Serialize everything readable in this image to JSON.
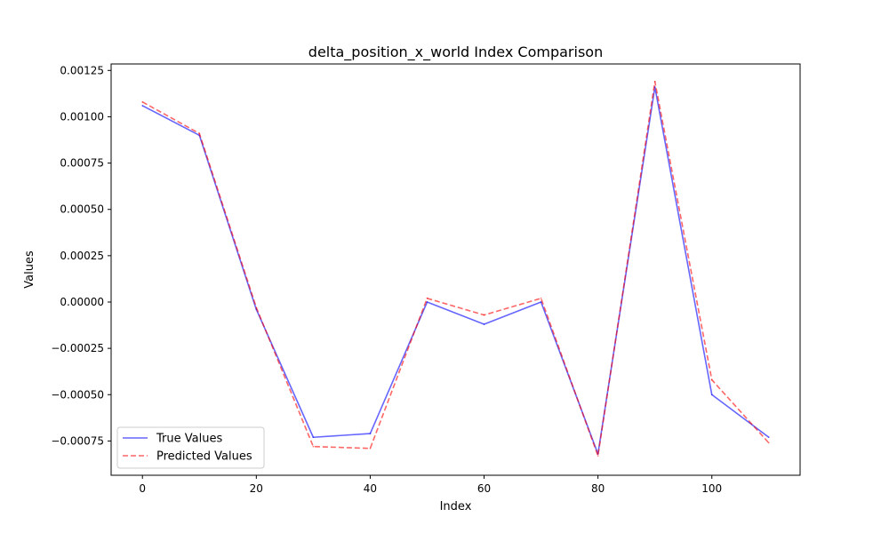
{
  "chart_data": {
    "type": "line",
    "title": "delta_position_x_world Index Comparison",
    "xlabel": "Index",
    "ylabel": "Values",
    "xlim": [
      -5.5,
      115.5
    ],
    "ylim": [
      -0.000935,
      0.001285
    ],
    "xticks": [
      0,
      20,
      40,
      60,
      80,
      100
    ],
    "yticks": [
      -0.00075,
      -0.0005,
      -0.00025,
      0.0,
      0.00025,
      0.0005,
      0.00075,
      0.001,
      0.00125
    ],
    "ytick_labels": [
      "−0.00075",
      "−0.00050",
      "−0.00025",
      "0.00000",
      "0.00025",
      "0.00050",
      "0.00075",
      "0.00100",
      "0.00125"
    ],
    "grid": false,
    "legend_position": "lower-left",
    "x": [
      0,
      10,
      20,
      30,
      40,
      50,
      60,
      70,
      80,
      90,
      100,
      110
    ],
    "series": [
      {
        "name": "True Values",
        "color": "#0000ff",
        "style": "solid",
        "values": [
          0.00106,
          0.0009,
          -4e-05,
          -0.00073,
          -0.00071,
          0.0,
          -0.00012,
          0.0,
          -0.00082,
          0.00116,
          -0.0005,
          -0.00073
        ]
      },
      {
        "name": "Predicted Values",
        "color": "#ff0000",
        "style": "dashed",
        "values": [
          0.00108,
          0.00091,
          -3e-05,
          -0.00078,
          -0.00079,
          2e-05,
          -7e-05,
          2e-05,
          -0.00083,
          0.00119,
          -0.00042,
          -0.00076
        ]
      }
    ]
  }
}
